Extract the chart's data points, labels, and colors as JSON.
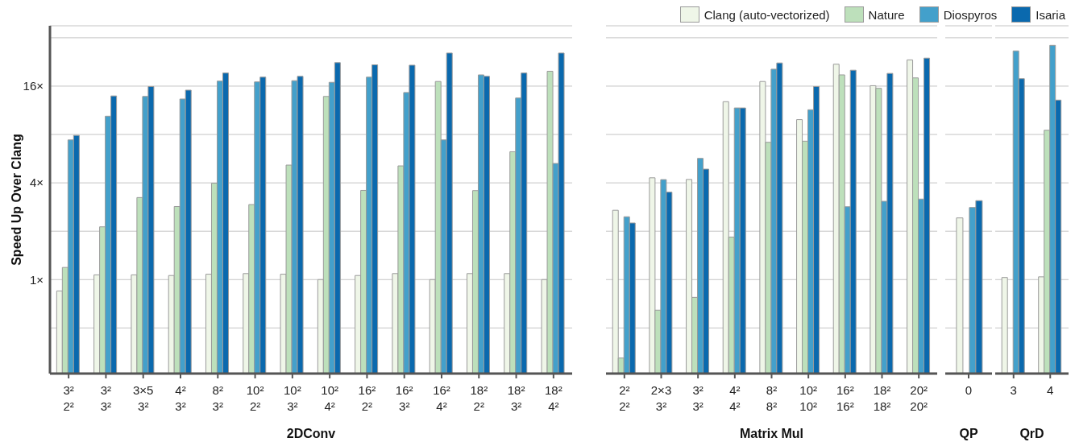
{
  "chart_data": [
    {
      "type": "bar",
      "xlabel": "2DConv",
      "ylabel": "Speed Up Over Clang",
      "log": "y",
      "grid": "y",
      "legend": "top right",
      "categories": [
        "3²\n2²",
        "3²\n3²",
        "3×5\n3²",
        "4²\n3²",
        "8²\n3²",
        "10²\n2²",
        "10²\n3²",
        "10²\n4²",
        "16²\n2²",
        "16²\n3²",
        "16²\n4²",
        "18²\n2²",
        "18²\n3²",
        "18²\n4²"
      ],
      "ylim": [
        0.26,
        38
      ],
      "yticks": [
        {
          "value": 0.5,
          "label": null
        },
        {
          "value": 1,
          "label": "1×"
        },
        {
          "value": 2,
          "label": null
        },
        {
          "value": 4,
          "label": "4×"
        },
        {
          "value": 8,
          "label": null
        },
        {
          "value": 16,
          "label": "16×"
        },
        {
          "value": 32,
          "label": null
        }
      ],
      "series": [
        {
          "name": "Clang (auto-vectorized)",
          "color": "#eff6e8",
          "values": [
            0.85,
            1.07,
            1.07,
            1.06,
            1.08,
            1.09,
            1.08,
            1.0,
            1.06,
            1.09,
            1.0,
            1.09,
            1.09,
            1.0
          ]
        },
        {
          "name": "Nature",
          "color": "#bde0bb",
          "values": [
            1.19,
            2.13,
            3.24,
            2.85,
            3.98,
            2.93,
            5.16,
            13.8,
            3.59,
            5.1,
            17.1,
            3.58,
            6.25,
            19.8
          ]
        },
        {
          "name": "Diospyros",
          "color": "#43a0cb",
          "values": [
            7.4,
            10.4,
            13.8,
            13.3,
            17.2,
            17.0,
            17.3,
            16.9,
            18.2,
            14.6,
            7.4,
            18.8,
            13.5,
            5.28
          ]
        },
        {
          "name": "Isaria",
          "color": "#0a69ae",
          "values": [
            7.9,
            13.9,
            15.9,
            15.1,
            19.3,
            18.2,
            18.4,
            22.4,
            21.7,
            21.6,
            25.7,
            18.4,
            19.3,
            25.7
          ]
        }
      ]
    },
    {
      "type": "bar",
      "xlabel": "Matrix Mul",
      "log": "y",
      "grid": "y",
      "tick_labels": "x",
      "categories": [
        "2²\n2²",
        "2×3\n3²",
        "3²\n3²",
        "4²\n4²",
        "8²\n8²",
        "10²\n10²",
        "16²\n16²",
        "18²\n18²",
        "20²\n20²"
      ],
      "ylim": [
        0.26,
        38
      ],
      "yticks": [
        0.5,
        1,
        2,
        4,
        8,
        16,
        32
      ],
      "series": [
        {
          "color": "#eff6e8",
          "values": [
            2.7,
            4.3,
            4.2,
            12.8,
            17.1,
            9.9,
            21.9,
            16.1,
            23.3
          ]
        },
        {
          "color": "#bde0bb",
          "values": [
            0.325,
            0.645,
            0.775,
            1.84,
            7.15,
            7.27,
            18.8,
            15.5,
            18.0
          ]
        },
        {
          "color": "#43a0cb",
          "values": [
            2.46,
            4.19,
            5.68,
            11.7,
            20.4,
            11.4,
            2.84,
            3.07,
            3.17
          ]
        },
        {
          "color": "#0a69ae",
          "values": [
            2.25,
            3.5,
            4.87,
            11.7,
            22.3,
            15.9,
            20.1,
            19.2,
            23.9
          ]
        }
      ]
    },
    {
      "type": "bar",
      "xlabel": "QP",
      "log": "y",
      "grid": "y",
      "tick_labels": "x",
      "categories": [
        "0"
      ],
      "ylim": [
        0.26,
        38
      ],
      "yticks": [
        0.5,
        1,
        2,
        4,
        8,
        16,
        32
      ],
      "series": [
        {
          "color": "#eff6e8",
          "values": [
            2.42
          ]
        },
        {
          "color": "#bde0bb",
          "values": [
            null
          ]
        },
        {
          "color": "#43a0cb",
          "values": [
            2.81
          ]
        },
        {
          "color": "#0a69ae",
          "values": [
            3.1
          ]
        }
      ]
    },
    {
      "type": "bar",
      "xlabel": "QrD",
      "log": "y",
      "grid": "y",
      "tick_labels": "x",
      "categories": [
        "3",
        "4"
      ],
      "ylim": [
        0.26,
        38
      ],
      "yticks": [
        0.5,
        1,
        2,
        4,
        8,
        16,
        32
      ],
      "series": [
        {
          "color": "#eff6e8",
          "values": [
            1.03,
            1.04
          ]
        },
        {
          "color": "#bde0bb",
          "values": [
            null,
            8.5
          ]
        },
        {
          "color": "#43a0cb",
          "values": [
            26.5,
            28.7
          ]
        },
        {
          "color": "#0a69ae",
          "values": [
            17.8,
            13.1
          ]
        }
      ]
    }
  ]
}
